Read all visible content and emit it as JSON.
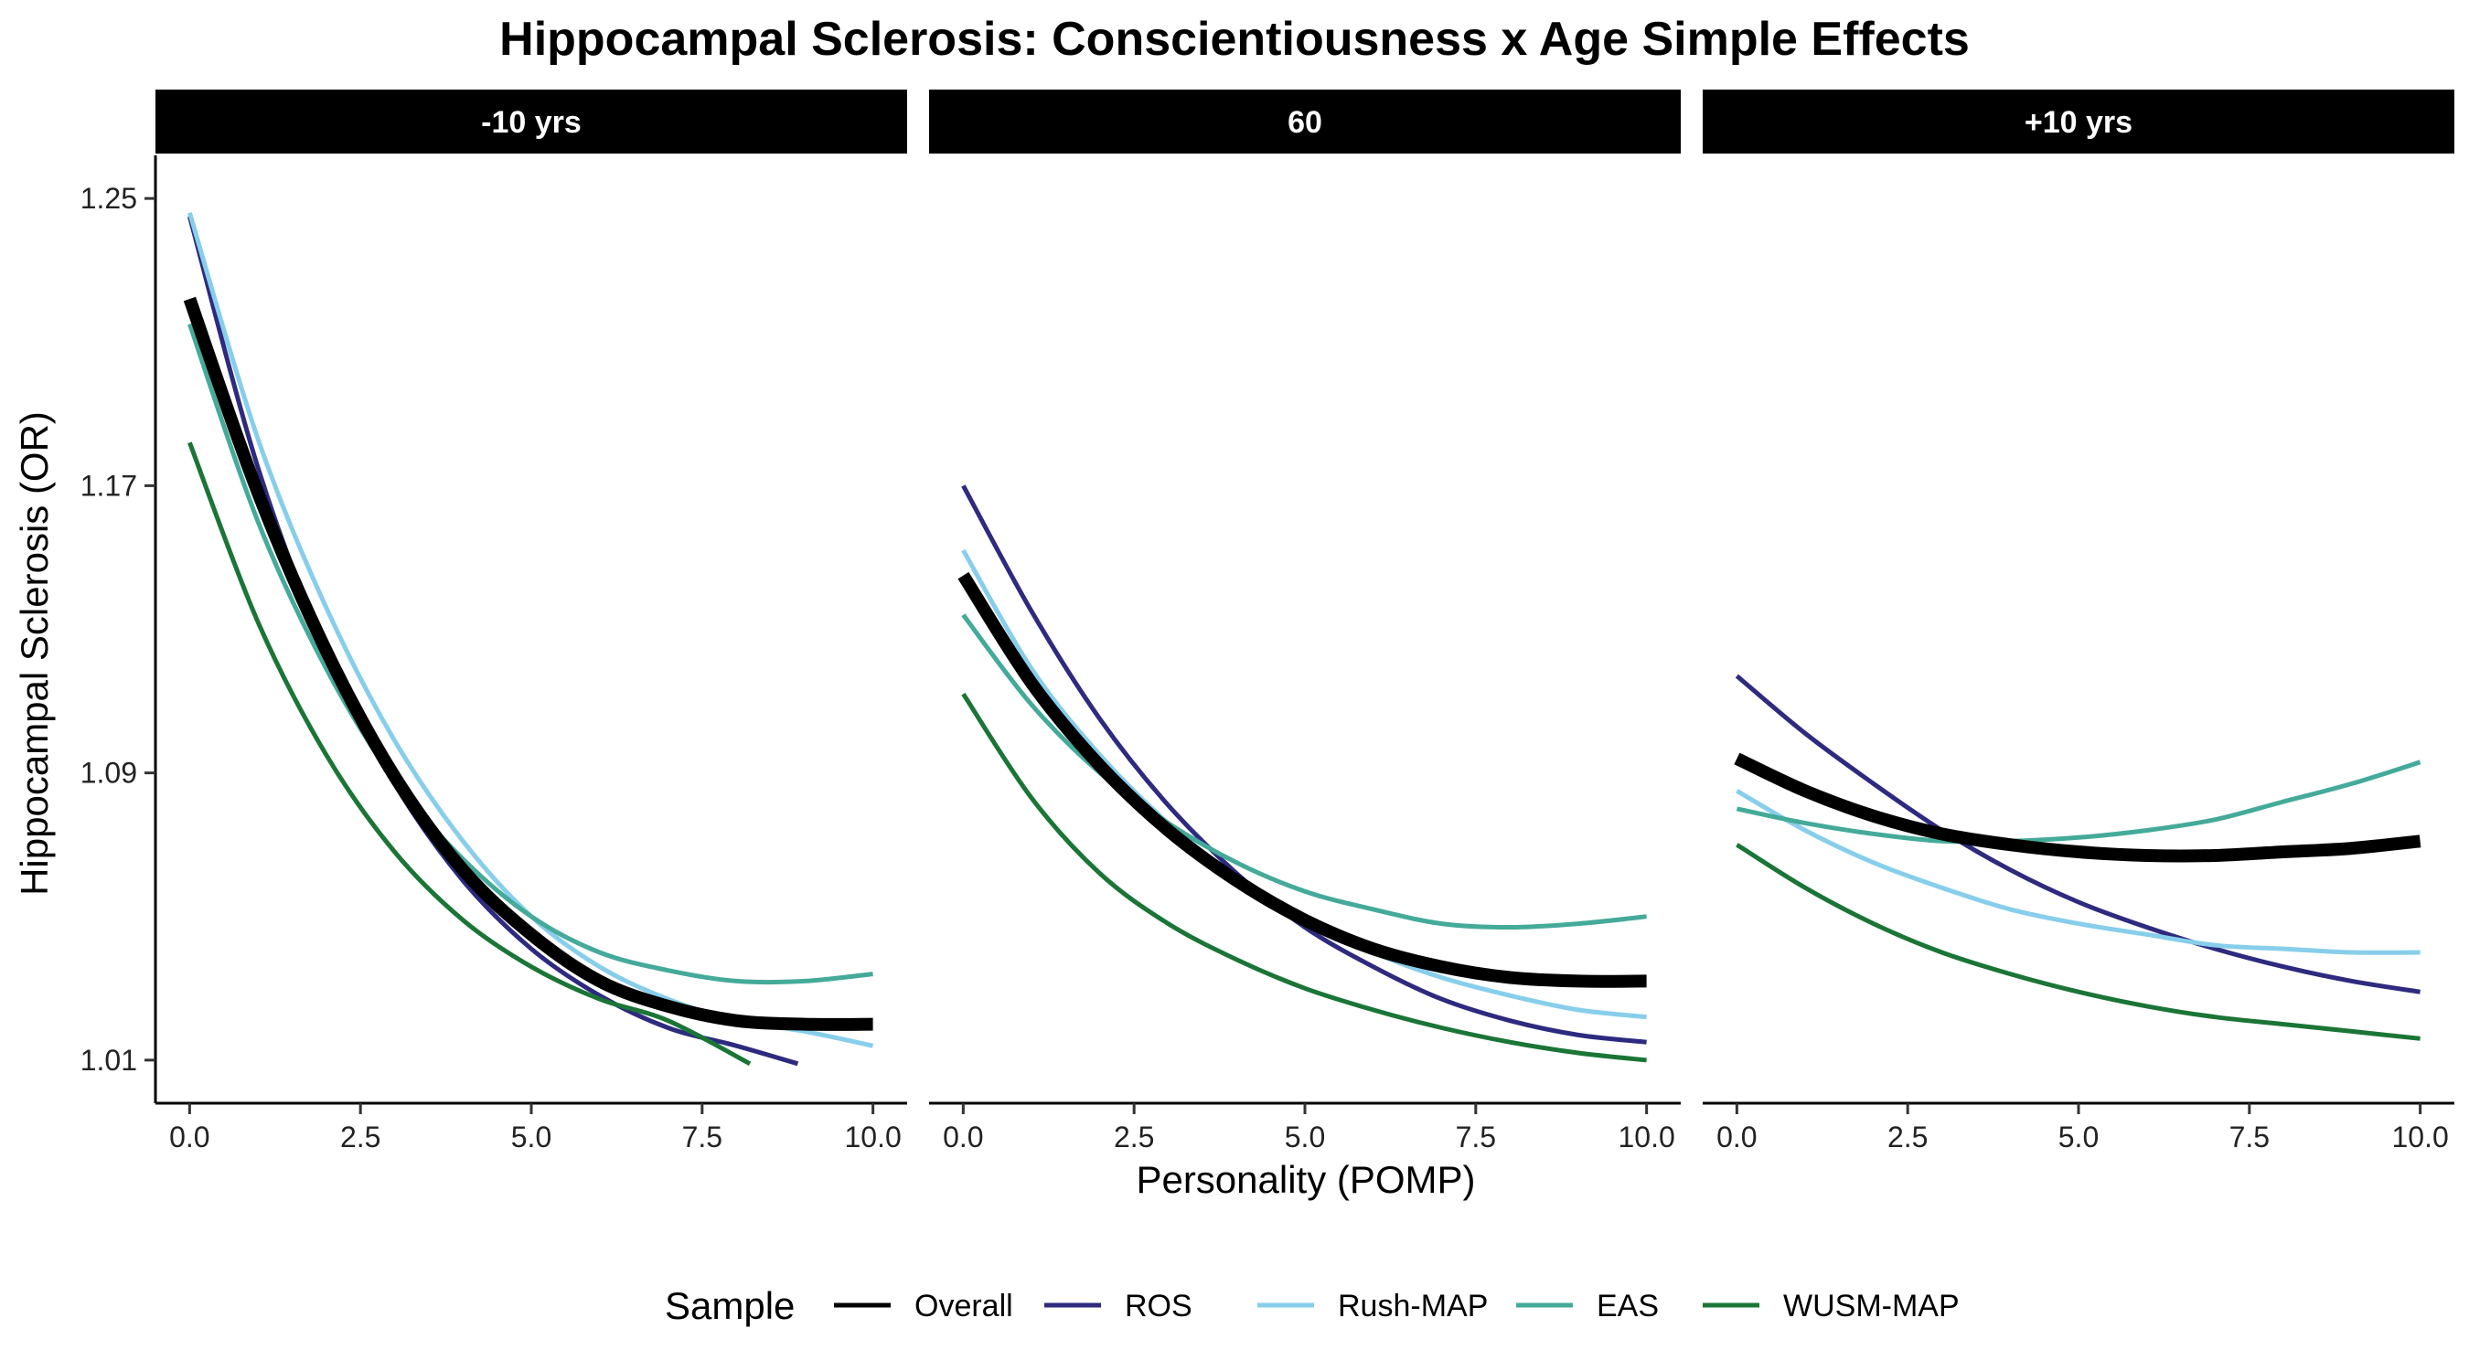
{
  "chart_data": {
    "type": "line",
    "title": "Hippocampal Sclerosis: Conscientiousness x Age Simple Effects",
    "xlabel": "Personality (POMP)",
    "ylabel": "Hippocampal Sclerosis (OR)",
    "x_ticks": [
      "0.0",
      "2.5",
      "5.0",
      "7.5",
      "10.0"
    ],
    "x_tick_values": [
      0,
      2.5,
      5,
      7.5,
      10
    ],
    "y_ticks": [
      "1.01",
      "1.09",
      "1.17",
      "1.25"
    ],
    "y_tick_values": [
      1.01,
      1.09,
      1.17,
      1.25
    ],
    "xlim": [
      -0.5,
      10.5
    ],
    "ylim": [
      0.998,
      1.262
    ],
    "grid": false,
    "legend": {
      "title": "Sample",
      "position": "bottom",
      "entries": [
        "Overall",
        "ROS",
        "Rush-MAP",
        "EAS",
        "WUSM-MAP"
      ]
    },
    "colors": {
      "Overall": "#000000",
      "ROS": "#2d2a7f",
      "Rush-MAP": "#87ceeb",
      "EAS": "#44aa99",
      "WUSM-MAP": "#1a7536"
    },
    "panels": [
      {
        "label": "-10 yrs",
        "series": [
          {
            "name": "ROS",
            "x": [
              0,
              1,
              2,
              3,
              4,
              5,
              6,
              7,
              8,
              8.9
            ],
            "y": [
              1.245,
              1.175,
              1.124,
              1.087,
              1.06,
              1.041,
              1.028,
              1.019,
              1.014,
              1.009
            ]
          },
          {
            "name": "Rush-MAP",
            "x": [
              0,
              1,
              2,
              3,
              4,
              5,
              6,
              7,
              8,
              9,
              10
            ],
            "y": [
              1.246,
              1.183,
              1.136,
              1.099,
              1.071,
              1.05,
              1.036,
              1.027,
              1.021,
              1.018,
              1.014
            ]
          },
          {
            "name": "EAS",
            "x": [
              0,
              1,
              2,
              3,
              4,
              5,
              6,
              7,
              8,
              9,
              10
            ],
            "y": [
              1.215,
              1.16,
              1.119,
              1.088,
              1.066,
              1.05,
              1.04,
              1.035,
              1.032,
              1.032,
              1.034
            ]
          },
          {
            "name": "WUSM-MAP",
            "x": [
              0,
              1,
              2,
              3,
              4,
              5,
              6,
              7,
              8.2
            ],
            "y": [
              1.182,
              1.132,
              1.095,
              1.068,
              1.049,
              1.036,
              1.027,
              1.021,
              1.009
            ]
          },
          {
            "name": "Overall",
            "x": [
              0,
              1,
              2,
              3,
              4,
              5,
              6,
              7,
              8,
              9,
              10
            ],
            "y": [
              1.222,
              1.168,
              1.124,
              1.089,
              1.063,
              1.045,
              1.032,
              1.025,
              1.021,
              1.02,
              1.02
            ]
          }
        ]
      },
      {
        "label": "60",
        "series": [
          {
            "name": "ROS",
            "x": [
              0,
              1,
              2,
              3,
              4,
              5,
              6,
              7,
              8,
              9,
              10
            ],
            "y": [
              1.17,
              1.135,
              1.105,
              1.081,
              1.062,
              1.047,
              1.036,
              1.027,
              1.021,
              1.017,
              1.015
            ]
          },
          {
            "name": "Rush-MAP",
            "x": [
              0,
              1,
              2,
              3,
              4,
              5,
              6,
              7,
              8,
              9,
              10
            ],
            "y": [
              1.152,
              1.119,
              1.095,
              1.076,
              1.061,
              1.049,
              1.04,
              1.033,
              1.028,
              1.024,
              1.022
            ]
          },
          {
            "name": "EAS",
            "x": [
              0,
              1,
              2,
              3,
              4,
              5,
              6,
              7,
              8,
              9,
              10
            ],
            "y": [
              1.134,
              1.109,
              1.09,
              1.076,
              1.065,
              1.057,
              1.052,
              1.048,
              1.047,
              1.048,
              1.05
            ]
          },
          {
            "name": "WUSM-MAP",
            "x": [
              0,
              1,
              2,
              3,
              4,
              5,
              6,
              7,
              8,
              9,
              10
            ],
            "y": [
              1.112,
              1.083,
              1.062,
              1.048,
              1.038,
              1.03,
              1.024,
              1.019,
              1.015,
              1.012,
              1.01
            ]
          },
          {
            "name": "Overall",
            "x": [
              0,
              1,
              2,
              3,
              4,
              5,
              6,
              7,
              8,
              9,
              10
            ],
            "y": [
              1.145,
              1.115,
              1.092,
              1.074,
              1.06,
              1.049,
              1.041,
              1.036,
              1.033,
              1.032,
              1.032
            ]
          }
        ]
      },
      {
        "label": "+10 yrs",
        "series": [
          {
            "name": "ROS",
            "x": [
              0,
              1,
              2,
              3,
              4,
              5,
              6,
              7,
              8,
              9,
              10
            ],
            "y": [
              1.117,
              1.101,
              1.087,
              1.074,
              1.063,
              1.054,
              1.047,
              1.041,
              1.036,
              1.032,
              1.029
            ]
          },
          {
            "name": "Rush-MAP",
            "x": [
              0,
              1,
              2,
              3,
              4,
              5,
              6,
              7,
              8,
              9,
              10
            ],
            "y": [
              1.085,
              1.074,
              1.065,
              1.058,
              1.052,
              1.048,
              1.045,
              1.042,
              1.041,
              1.04,
              1.04
            ]
          },
          {
            "name": "EAS",
            "x": [
              0,
              1,
              2,
              3,
              4,
              5,
              6,
              7,
              8,
              9,
              10
            ],
            "y": [
              1.08,
              1.076,
              1.073,
              1.071,
              1.071,
              1.072,
              1.074,
              1.077,
              1.082,
              1.087,
              1.093
            ]
          },
          {
            "name": "WUSM-MAP",
            "x": [
              0,
              1,
              2,
              3,
              4,
              5,
              6,
              7,
              8,
              9,
              10
            ],
            "y": [
              1.07,
              1.058,
              1.048,
              1.04,
              1.034,
              1.029,
              1.025,
              1.022,
              1.02,
              1.018,
              1.016
            ]
          },
          {
            "name": "Overall",
            "x": [
              0,
              1,
              2,
              3,
              4,
              5,
              6,
              7,
              8,
              9,
              10
            ],
            "y": [
              1.094,
              1.085,
              1.078,
              1.073,
              1.07,
              1.068,
              1.067,
              1.067,
              1.068,
              1.069,
              1.071
            ]
          }
        ]
      }
    ]
  }
}
